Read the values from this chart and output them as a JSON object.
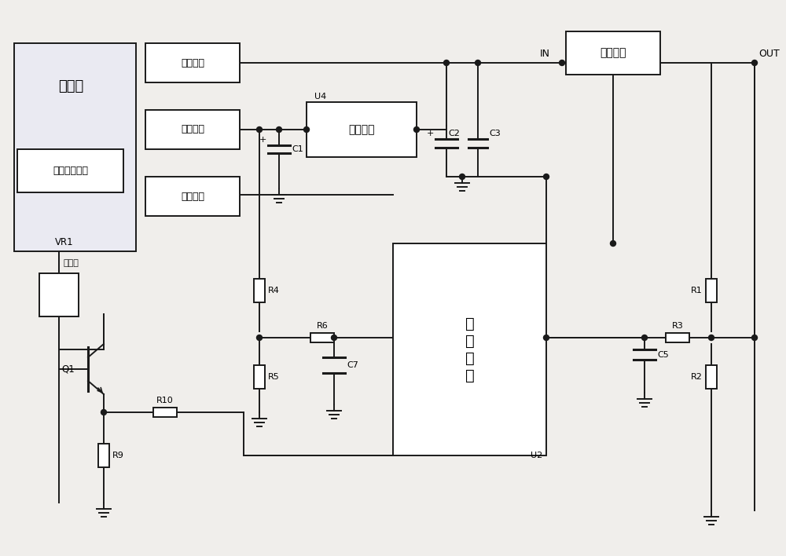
{
  "bg": "#f0eeeb",
  "lc": "#1a1a1a",
  "lw": 1.4,
  "figsize": [
    10.0,
    7.08
  ],
  "dpi": 100,
  "labels": {
    "charger_big": "充电器",
    "charger_small": "充电器",
    "pwm": "脉宽调制芯片",
    "main_out": "主要输出",
    "aux_out": "辅助输出",
    "charge_state": "充电状态",
    "u4_label": "U4",
    "u4_chip": "稳压芯片",
    "mcu": "微\n控\n制\n器",
    "mcu_ref": "U2",
    "switch": "开关装置",
    "in_txt": "IN",
    "out_txt": "OUT",
    "vr1": "VR1",
    "q1": "Q1",
    "r1": "R1",
    "r2": "R2",
    "r3": "R3",
    "r4": "R4",
    "r5": "R5",
    "r6": "R6",
    "r9": "R9",
    "r10": "R10",
    "c1": "C1",
    "c2": "C2",
    "c3": "C3",
    "c5": "C5",
    "c7": "C7",
    "plus": "+"
  }
}
